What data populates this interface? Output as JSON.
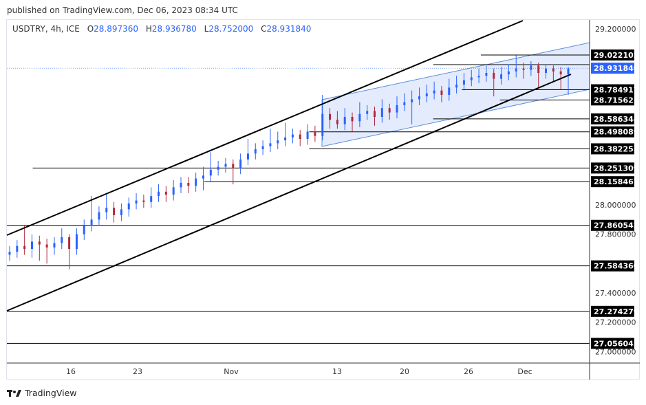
{
  "header": {
    "published": "published on TradingView.com, Dec 06, 2023 08:34 UTC"
  },
  "legend": {
    "symbol": "USDTRY, 4h, ICE",
    "o_label": "O",
    "o": "28.897360",
    "h_label": "H",
    "h": "28.936780",
    "l_label": "L",
    "l": "28.752000",
    "c_label": "C",
    "c": "28.931840"
  },
  "footer": {
    "brand": "TradingView"
  },
  "colors": {
    "up": "#2962ff",
    "down": "#b2283a",
    "current_price": "#2962ff",
    "level_label": "#000000",
    "channel_fill": "#dce6fb",
    "channel_line": "#5b8fd9",
    "trendline": "#000000"
  },
  "chart_data": {
    "type": "candlestick",
    "symbol": "USDTRY",
    "interval": "4h",
    "ylim": [
      26.92,
      29.26
    ],
    "y_ticks": [
      "29.200000",
      "28.000000",
      "27.800000",
      "27.400000",
      "27.200000",
      "27.000000"
    ],
    "y_tick_values": [
      29.2,
      28.0,
      27.8,
      27.4,
      27.2,
      27.0
    ],
    "x_ticks": [
      "16",
      "23",
      "Nov",
      "13",
      "20",
      "26",
      "Dec"
    ],
    "current_price": {
      "value": 28.93184,
      "label": "28.931840"
    },
    "levels": [
      {
        "value": 29.022102,
        "label": "29.022102",
        "from": "Nov 28"
      },
      {
        "value": 28.956,
        "label": "",
        "from": "Nov 23"
      },
      {
        "value": 28.784917,
        "label": "28.784917",
        "from": "Nov 26"
      },
      {
        "value": 28.715621,
        "label": "28.715621",
        "from": "Nov 30"
      },
      {
        "value": 28.586344,
        "label": "28.586344",
        "from": "Nov 23"
      },
      {
        "value": 28.498089,
        "label": "28.498089",
        "from": "Nov 10"
      },
      {
        "value": 28.382255,
        "label": "28.382255",
        "from": "Nov 10"
      },
      {
        "value": 28.251309,
        "label": "28.251309",
        "from": "Oct 12"
      },
      {
        "value": 28.158467,
        "label": "28.158467",
        "from": "Oct 30"
      },
      {
        "value": 27.860542,
        "label": "27.860542",
        "from": "Oct 9"
      },
      {
        "value": 27.58436,
        "label": "27.584360",
        "from": "Oct 9"
      },
      {
        "value": 27.274279,
        "label": "27.274279",
        "from": "Oct 9"
      },
      {
        "value": 27.056045,
        "label": "27.056045",
        "from": "Oct 9"
      }
    ],
    "candles": [
      [
        27.66,
        27.72,
        27.62,
        27.68
      ],
      [
        27.68,
        27.76,
        27.64,
        27.72
      ],
      [
        27.72,
        27.86,
        27.66,
        27.7
      ],
      [
        27.7,
        27.8,
        27.64,
        27.75
      ],
      [
        27.75,
        27.79,
        27.62,
        27.73
      ],
      [
        27.73,
        27.77,
        27.6,
        27.71
      ],
      [
        27.71,
        27.78,
        27.66,
        27.74
      ],
      [
        27.74,
        27.84,
        27.7,
        27.78
      ],
      [
        27.78,
        27.8,
        27.56,
        27.7
      ],
      [
        27.7,
        27.84,
        27.66,
        27.8
      ],
      [
        27.8,
        27.9,
        27.76,
        27.86
      ],
      [
        27.86,
        28.06,
        27.82,
        27.9
      ],
      [
        27.9,
        27.99,
        27.86,
        27.95
      ],
      [
        27.95,
        28.07,
        27.9,
        27.98
      ],
      [
        27.98,
        28.02,
        27.88,
        27.93
      ],
      [
        27.93,
        28.01,
        27.89,
        27.97
      ],
      [
        27.97,
        28.05,
        27.92,
        28.01
      ],
      [
        28.01,
        28.08,
        27.97,
        28.03
      ],
      [
        28.03,
        28.07,
        27.98,
        28.02
      ],
      [
        28.02,
        28.12,
        27.98,
        28.06
      ],
      [
        28.06,
        28.14,
        28.02,
        28.09
      ],
      [
        28.09,
        28.13,
        28.02,
        28.07
      ],
      [
        28.07,
        28.17,
        28.03,
        28.12
      ],
      [
        28.12,
        28.19,
        28.08,
        28.15
      ],
      [
        28.15,
        28.19,
        28.08,
        28.13
      ],
      [
        28.13,
        28.22,
        28.09,
        28.18
      ],
      [
        28.18,
        28.26,
        28.1,
        28.2
      ],
      [
        28.2,
        28.36,
        28.16,
        28.24
      ],
      [
        28.24,
        28.3,
        28.2,
        28.26
      ],
      [
        28.26,
        28.32,
        28.22,
        28.28
      ],
      [
        28.28,
        28.31,
        28.14,
        28.25
      ],
      [
        28.25,
        28.35,
        28.21,
        28.31
      ],
      [
        28.31,
        28.45,
        28.27,
        28.35
      ],
      [
        28.35,
        28.42,
        28.31,
        28.38
      ],
      [
        28.38,
        28.44,
        28.34,
        28.4
      ],
      [
        28.4,
        28.52,
        28.36,
        28.42
      ],
      [
        28.42,
        28.5,
        28.38,
        28.44
      ],
      [
        28.44,
        28.56,
        28.4,
        28.46
      ],
      [
        28.46,
        28.52,
        28.42,
        28.48
      ],
      [
        28.48,
        28.51,
        28.4,
        28.45
      ],
      [
        28.45,
        28.55,
        28.41,
        28.5
      ],
      [
        28.5,
        28.54,
        28.43,
        28.47
      ],
      [
        28.47,
        28.75,
        28.44,
        28.62
      ],
      [
        28.62,
        28.66,
        28.52,
        28.58
      ],
      [
        28.58,
        28.64,
        28.52,
        28.55
      ],
      [
        28.55,
        28.66,
        28.51,
        28.6
      ],
      [
        28.6,
        28.63,
        28.5,
        28.57
      ],
      [
        28.57,
        28.7,
        28.53,
        28.62
      ],
      [
        28.62,
        28.68,
        28.58,
        28.64
      ],
      [
        28.64,
        28.67,
        28.54,
        28.6
      ],
      [
        28.6,
        28.72,
        28.56,
        28.66
      ],
      [
        28.66,
        28.69,
        28.58,
        28.63
      ],
      [
        28.63,
        28.74,
        28.59,
        28.68
      ],
      [
        28.68,
        28.76,
        28.64,
        28.7
      ],
      [
        28.7,
        28.78,
        28.55,
        28.72
      ],
      [
        28.72,
        28.8,
        28.68,
        28.74
      ],
      [
        28.74,
        28.82,
        28.7,
        28.76
      ],
      [
        28.76,
        28.84,
        28.72,
        28.78
      ],
      [
        28.78,
        28.81,
        28.7,
        28.75
      ],
      [
        28.75,
        28.86,
        28.71,
        28.8
      ],
      [
        28.8,
        28.88,
        28.76,
        28.82
      ],
      [
        28.82,
        28.9,
        28.78,
        28.85
      ],
      [
        28.85,
        28.92,
        28.81,
        28.87
      ],
      [
        28.87,
        28.93,
        28.83,
        28.88
      ],
      [
        28.88,
        28.95,
        28.84,
        28.9
      ],
      [
        28.9,
        28.93,
        28.74,
        28.86
      ],
      [
        28.86,
        28.94,
        28.82,
        28.89
      ],
      [
        28.89,
        28.96,
        28.85,
        28.91
      ],
      [
        28.91,
        29.02,
        28.87,
        28.93
      ],
      [
        28.93,
        28.97,
        28.86,
        28.92
      ],
      [
        28.92,
        28.98,
        28.88,
        28.95
      ],
      [
        28.95,
        28.97,
        28.8,
        28.9
      ],
      [
        28.9,
        28.96,
        28.86,
        28.93
      ],
      [
        28.93,
        28.95,
        28.84,
        28.91
      ],
      [
        28.91,
        28.94,
        28.79,
        28.89
      ],
      [
        28.89,
        28.94,
        28.75,
        28.93
      ]
    ]
  }
}
